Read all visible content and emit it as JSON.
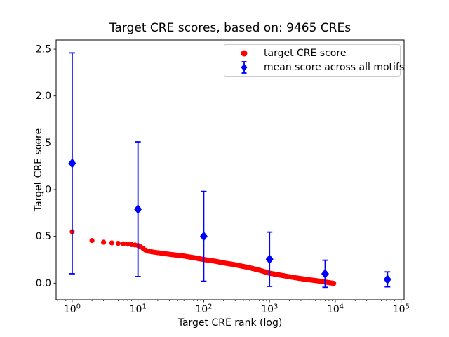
{
  "chart_data": {
    "type": "scatter",
    "title": "Target CRE scores, based on: 9465 CREs",
    "xlabel": "Target CRE rank (log)",
    "ylabel": "Target CRE score",
    "x_scale": "log",
    "xlim": [
      0.57,
      111000
    ],
    "ylim": [
      -0.178,
      2.598
    ],
    "x_tick_exponents": [
      0,
      1,
      2,
      3,
      4,
      5
    ],
    "y_ticks": [
      0.0,
      0.5,
      1.0,
      1.5,
      2.0,
      2.5
    ],
    "grid": false,
    "n_cres": 9465,
    "series": [
      {
        "name": "target CRE score",
        "plot_type": "scatter",
        "marker": "circle",
        "color": "#ff0000",
        "n_points": 9465,
        "keypoints": [
          [
            1,
            0.55
          ],
          [
            2,
            0.455
          ],
          [
            3,
            0.437
          ],
          [
            4,
            0.43
          ],
          [
            5,
            0.425
          ],
          [
            6,
            0.421
          ],
          [
            7,
            0.417
          ],
          [
            8,
            0.412
          ],
          [
            9,
            0.408
          ],
          [
            10,
            0.402
          ],
          [
            11,
            0.388
          ],
          [
            12,
            0.37
          ],
          [
            13,
            0.353
          ],
          [
            14,
            0.343
          ],
          [
            16,
            0.335
          ],
          [
            20,
            0.325
          ],
          [
            30,
            0.308
          ],
          [
            50,
            0.289
          ],
          [
            70,
            0.272
          ],
          [
            100,
            0.252
          ],
          [
            150,
            0.234
          ],
          [
            200,
            0.216
          ],
          [
            300,
            0.196
          ],
          [
            500,
            0.164
          ],
          [
            700,
            0.138
          ],
          [
            1000,
            0.106
          ],
          [
            1500,
            0.084
          ],
          [
            2000,
            0.068
          ],
          [
            3000,
            0.048
          ],
          [
            4000,
            0.036
          ],
          [
            5000,
            0.027
          ],
          [
            7000,
            0.012
          ],
          [
            9465,
            -0.003
          ]
        ]
      },
      {
        "name": "mean score across all motifs",
        "plot_type": "errorbar",
        "marker": "diamond",
        "color": "#0000ff",
        "points": [
          {
            "rank": 1,
            "mean": 1.28,
            "err": 1.18
          },
          {
            "rank": 10,
            "mean": 0.79,
            "err": 0.72
          },
          {
            "rank": 100,
            "mean": 0.5,
            "err": 0.48
          },
          {
            "rank": 1000,
            "mean": 0.255,
            "err": 0.29
          },
          {
            "rank": 7000,
            "mean": 0.1,
            "err": 0.145
          },
          {
            "rank": 62000,
            "mean": 0.04,
            "err": 0.08
          }
        ]
      }
    ],
    "legend": {
      "position": "upper right",
      "entries": [
        {
          "label": "target CRE score",
          "marker": "circle",
          "color": "#ff0000"
        },
        {
          "label": "mean score across all motifs",
          "marker": "diamond-errorbar",
          "color": "#0000ff"
        }
      ]
    }
  }
}
